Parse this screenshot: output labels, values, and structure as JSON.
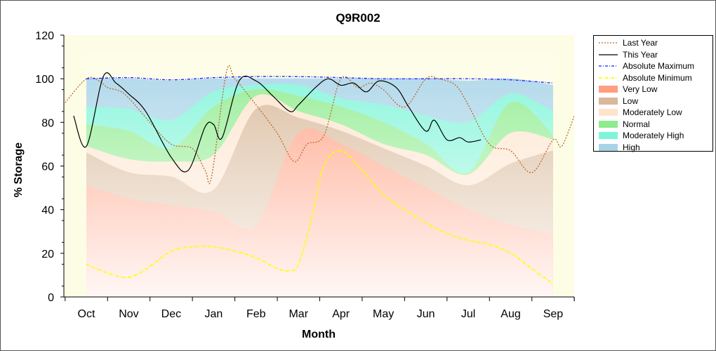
{
  "chart_data": {
    "type": "area",
    "title": "Q9R002",
    "xlabel": "Month",
    "ylabel": "% Storage",
    "ylim": [
      0,
      120
    ],
    "yticks": [
      0,
      20,
      40,
      60,
      80,
      100,
      120
    ],
    "xticks": [
      "Oct",
      "Nov",
      "Dec",
      "Jan",
      "Feb",
      "Mar",
      "Apr",
      "May",
      "Jun",
      "Jul",
      "Aug",
      "Sep"
    ],
    "x": [
      0,
      1,
      2,
      3,
      4,
      5,
      6,
      7,
      8,
      9,
      10,
      11
    ],
    "grid": false,
    "legend_position": "right",
    "bands": [
      {
        "name": "Very Low",
        "color": "#ff9e80",
        "values": [
          51,
          45,
          42,
          39,
          33,
          75,
          70,
          60,
          50,
          40,
          33,
          29
        ]
      },
      {
        "name": "Low",
        "color": "#d8b898",
        "values": [
          66,
          57,
          55,
          49,
          86,
          82,
          76,
          68,
          60,
          51,
          61,
          67
        ]
      },
      {
        "name": "Moderately Low",
        "color": "#fde4cc",
        "values": [
          69,
          63,
          62,
          65,
          92,
          85,
          79,
          70,
          65,
          56,
          75,
          72
        ]
      },
      {
        "name": "Normal",
        "color": "#8eec8e",
        "values": [
          79,
          76,
          68,
          87,
          95,
          92,
          87,
          80,
          70,
          57,
          89,
          74
        ]
      },
      {
        "name": "Moderately High",
        "color": "#7ff5d8",
        "values": [
          87,
          86,
          81,
          94,
          97,
          97,
          91,
          88,
          83,
          80,
          93,
          85
        ]
      },
      {
        "name": "High",
        "color": "#a8d4e8",
        "values": [
          100,
          100,
          99,
          100,
          100,
          100,
          100,
          100,
          100,
          99,
          100,
          97
        ]
      }
    ],
    "series": [
      {
        "name": "Last Year",
        "color": "#b86a2c",
        "style": "dotted",
        "x": [
          -0.5,
          0,
          0.3,
          0.5,
          0.9,
          1.5,
          2,
          2.5,
          2.8,
          2.95,
          3.3,
          3.5,
          4,
          4.5,
          4.9,
          5.2,
          5.6,
          6,
          6.4,
          6.7,
          7,
          7.5,
          8,
          8.3,
          8.7,
          9,
          9.5,
          10,
          10.5,
          11,
          11.2,
          11.5
        ],
        "values": [
          89,
          100,
          99,
          96,
          93,
          80,
          70,
          68,
          58,
          55,
          103,
          100,
          88,
          75,
          62,
          70,
          74,
          100,
          96,
          98,
          95,
          87,
          100,
          100,
          97,
          88,
          70,
          67,
          57,
          72,
          69,
          83
        ]
      },
      {
        "name": "This Year",
        "color": "#000000",
        "style": "solid",
        "x": [
          -0.3,
          0,
          0.4,
          0.7,
          1,
          1.4,
          2,
          2.4,
          2.8,
          3,
          3.2,
          3.6,
          4,
          4.4,
          4.8,
          5,
          5.4,
          5.7,
          6,
          6.3,
          6.6,
          6.9,
          7.3,
          7.6,
          8,
          8.2,
          8.5,
          8.8,
          9,
          9.3
        ],
        "values": [
          83,
          69,
          101,
          98,
          93,
          85,
          64,
          58,
          78,
          79,
          73,
          99,
          99,
          92,
          85,
          88,
          96,
          100,
          97,
          98,
          94,
          99,
          96,
          87,
          76,
          81,
          72,
          73,
          71,
          72
        ]
      },
      {
        "name": "Absolute Maximum",
        "color": "#1a1aff",
        "style": "dashdot",
        "x": [
          0,
          1,
          2,
          3,
          4,
          5,
          6,
          7,
          8,
          9,
          10,
          11
        ],
        "values": [
          100,
          100.5,
          99.5,
          100.5,
          101,
          101,
          100.5,
          100,
          100,
          100,
          99.5,
          98
        ]
      },
      {
        "name": "Absolute Minimum",
        "color": "#ffff00",
        "style": "dashdot",
        "x": [
          0,
          0.5,
          1,
          1.5,
          2,
          2.5,
          3,
          3.5,
          4,
          4.5,
          4.8,
          5,
          5.3,
          5.6,
          6,
          6.5,
          7,
          7.5,
          8,
          8.5,
          9,
          9.5,
          10,
          10.5,
          11
        ],
        "values": [
          15,
          11,
          9,
          14,
          21,
          23,
          23,
          21,
          18,
          13,
          12,
          15,
          35,
          60,
          67,
          58,
          47,
          40,
          34,
          29,
          26,
          24,
          20,
          13,
          6
        ]
      }
    ],
    "legend": [
      {
        "label": "Last Year",
        "kind": "line",
        "color": "#b86a2c",
        "style": "dotted"
      },
      {
        "label": "This Year",
        "kind": "line",
        "color": "#000000",
        "style": "solid"
      },
      {
        "label": "Absolute Maximum",
        "kind": "line",
        "color": "#1a1aff",
        "style": "dashdot"
      },
      {
        "label": "Absolute Minimum",
        "kind": "line",
        "color": "#ffff00",
        "style": "dashdot"
      },
      {
        "label": "Very Low",
        "kind": "area",
        "color": "#ff9e80"
      },
      {
        "label": "Low",
        "kind": "area",
        "color": "#d8b898"
      },
      {
        "label": "Moderately Low",
        "kind": "area",
        "color": "#fde4cc"
      },
      {
        "label": "Normal",
        "kind": "area",
        "color": "#8eec8e"
      },
      {
        "label": "Moderately High",
        "kind": "area",
        "color": "#7ff5d8"
      },
      {
        "label": "High",
        "kind": "area",
        "color": "#a8d4e8"
      }
    ],
    "plot_background": "#fdfde6"
  }
}
